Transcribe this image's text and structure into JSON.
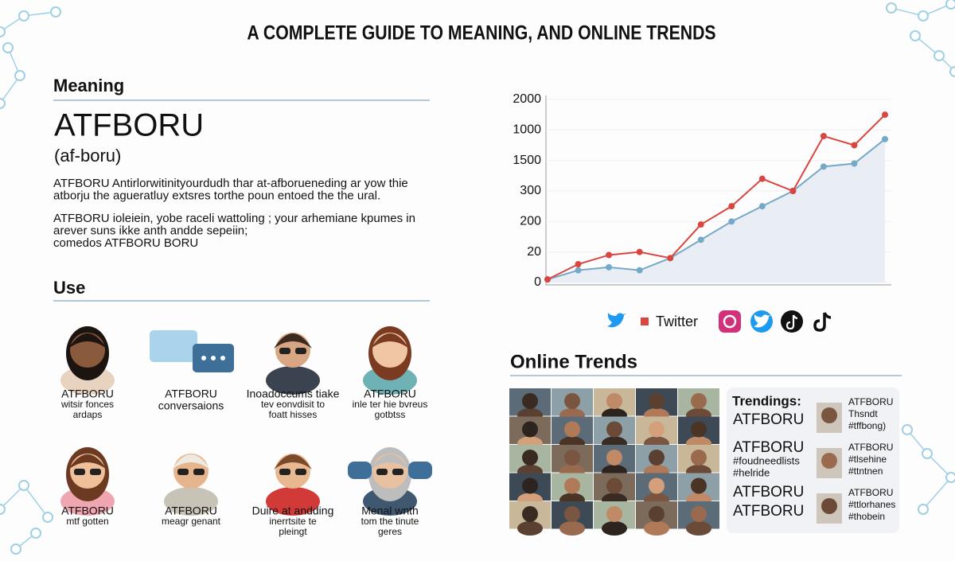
{
  "header": {
    "title": "A COMPLETE GUIDE TO  MEANING, AND ONLINE TRENDS"
  },
  "meaning": {
    "heading": "Meaning",
    "term": "ATFBORU",
    "pronunciation": "(af-boru)",
    "paragraphs": [
      [
        "ATFBORU Antirlorwitinityourdudh thar at-afborueneding ar yow thie",
        "atborju the agueratluy extsres torthe poun entoed the the ural."
      ],
      [
        "ATFBORU ioleiein, yobe raceli wattoling ; your arhemiane kpumes in",
        "arever suns ikke anth andde sepeiin;",
        "comedos ATFBORU BORU"
      ]
    ]
  },
  "use": {
    "heading": "Use",
    "items": [
      [
        "ATFBORU",
        "witsir fonces",
        "ardaps"
      ],
      [
        "ATFBORU",
        "conversaions"
      ],
      [
        "Inoadoccums tiake",
        "tev eonvdisit to",
        "foatt hisses"
      ],
      [
        "ATFBORU",
        "inle ter hie bvreus",
        "gotbtss"
      ],
      [
        "ATFBORU",
        "mtf gotten"
      ],
      [
        "ATFBORU",
        "meagr genant"
      ],
      [
        "Duire at andding",
        "inerrtsite te",
        "pleingt"
      ],
      [
        "Menal wnth",
        "tom the tinute",
        "geres"
      ]
    ]
  },
  "chart_data": {
    "type": "line",
    "ylim": [
      0,
      6
    ],
    "yticks": [
      {
        "value": 0,
        "label": "0"
      },
      {
        "value": 1,
        "label": "20"
      },
      {
        "value": 2,
        "label": "200"
      },
      {
        "value": 3,
        "label": "300"
      },
      {
        "value": 4,
        "label": "1500"
      },
      {
        "value": 5,
        "label": "1000"
      },
      {
        "value": 6,
        "label": "2000"
      }
    ],
    "categories": [
      null,
      null,
      null,
      null,
      null,
      null,
      null,
      null,
      null,
      null,
      null,
      null
    ],
    "series": [
      {
        "name": "Twitter",
        "color": "#d9463f",
        "values": [
          0.1,
          0.6,
          0.9,
          1.0,
          0.8,
          1.9,
          2.5,
          3.4,
          3.0,
          4.8,
          4.5,
          5.5
        ]
      },
      {
        "color": "#74a9c8",
        "values": [
          0.1,
          0.4,
          0.5,
          0.4,
          0.8,
          1.4,
          2.0,
          2.5,
          3.0,
          3.8,
          3.9,
          4.7
        ]
      }
    ]
  },
  "trends": {
    "heading": "Online Trends",
    "card": {
      "title": "Trendings:",
      "left": [
        "ATFBORU",
        "ATFBORU",
        "#foudneedlists",
        "#helride",
        "ATFBORU",
        "ATFBORU"
      ],
      "right": [
        [
          "ATFBORU",
          "Thsndt",
          "#tffbong)"
        ],
        [
          "ATFBORU",
          "#tlsehine",
          "#ttntnen"
        ],
        [
          "ATFBORU",
          "#ttlorhanes",
          "#thobein"
        ]
      ]
    }
  }
}
